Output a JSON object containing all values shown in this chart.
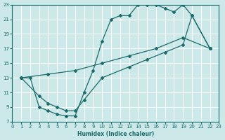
{
  "xlabel": "Humidex (Indice chaleur)",
  "xlim": [
    0,
    23
  ],
  "ylim": [
    7,
    23
  ],
  "xticks": [
    0,
    1,
    2,
    3,
    4,
    5,
    6,
    7,
    8,
    9,
    10,
    11,
    12,
    13,
    14,
    15,
    16,
    17,
    18,
    19,
    20,
    21,
    22,
    23
  ],
  "yticks": [
    7,
    9,
    11,
    13,
    15,
    17,
    19,
    21,
    23
  ],
  "bg_color": "#cce8e8",
  "grid_color": "#ffffff",
  "line_color": "#1a6b6b",
  "curve1_x": [
    1,
    2,
    3,
    4,
    5,
    6,
    7,
    8,
    9,
    10,
    11,
    12,
    13,
    14,
    15,
    16,
    17,
    18,
    19,
    20,
    22
  ],
  "curve1_y": [
    13,
    13,
    9,
    8.5,
    8.0,
    7.8,
    7.8,
    11.0,
    14.0,
    18.0,
    21.0,
    21.5,
    21.5,
    23.0,
    23.0,
    23.0,
    22.5,
    22.0,
    23.0,
    21.5,
    17.0
  ],
  "curve2_x": [
    1,
    4,
    7,
    10,
    13,
    16,
    19,
    22
  ],
  "curve2_y": [
    13,
    13.5,
    14.0,
    15.0,
    16.0,
    17.0,
    18.5,
    17.0
  ],
  "curve3_x": [
    1,
    3,
    4,
    5,
    6,
    7,
    8,
    10,
    13,
    15,
    17,
    19,
    20,
    22
  ],
  "curve3_y": [
    13,
    10.5,
    9.5,
    9.0,
    8.5,
    8.5,
    10.0,
    13.0,
    14.5,
    15.5,
    16.5,
    17.5,
    21.5,
    17.0
  ]
}
